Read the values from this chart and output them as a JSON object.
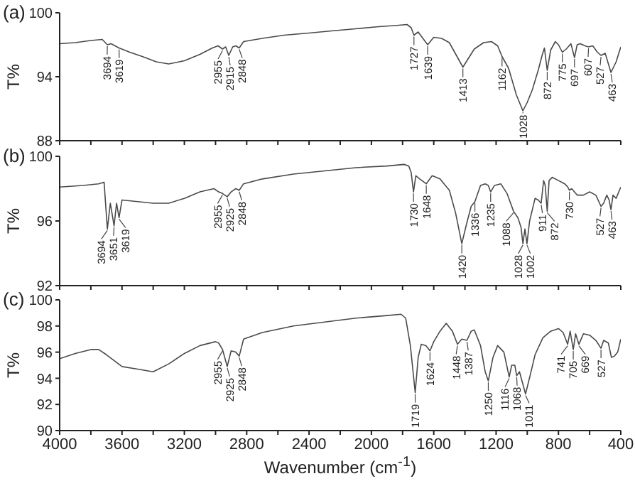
{
  "chart_data": [
    {
      "type": "line",
      "title": "(a)",
      "ylabel": "T%",
      "xlim": [
        4000,
        400
      ],
      "xticks": [
        4000,
        3800,
        3600,
        3400,
        3200,
        3000,
        2800,
        2600,
        2400,
        2200,
        2000,
        1800,
        1600,
        1400,
        1200,
        1000,
        800,
        600,
        400
      ],
      "ylim": [
        88,
        100
      ],
      "yticks": [
        88,
        94,
        100
      ],
      "tick_labels": "y",
      "x": [
        4000,
        3900,
        3800,
        3727,
        3694,
        3670,
        3619,
        3550,
        3470,
        3380,
        3300,
        3200,
        3100,
        3020,
        2984,
        2955,
        2935,
        2915,
        2890,
        2870,
        2848,
        2820,
        2700,
        2560,
        2400,
        2256,
        2100,
        1953,
        1850,
        1771,
        1745,
        1727,
        1700,
        1639,
        1600,
        1550,
        1500,
        1413,
        1340,
        1280,
        1230,
        1190,
        1162,
        1120,
        1070,
        1028,
        1000,
        967,
        930,
        905,
        890,
        872,
        850,
        820,
        800,
        775,
        750,
        720,
        697,
        680,
        660,
        630,
        607,
        580,
        550,
        527,
        500,
        463,
        430,
        400
      ],
      "series": [
        {
          "color": "#4a4a4a",
          "values": [
            97.1,
            97.2,
            97.4,
            97.5,
            97.0,
            97.1,
            96.7,
            96.3,
            95.9,
            95.4,
            95.2,
            95.5,
            96.1,
            96.7,
            96.9,
            96.6,
            96.8,
            96.0,
            96.8,
            96.9,
            96.7,
            97.3,
            97.6,
            97.9,
            98.1,
            98.3,
            98.5,
            98.7,
            98.8,
            98.9,
            98.6,
            97.9,
            98.2,
            97.0,
            97.7,
            97.6,
            97.2,
            94.9,
            96.6,
            97.2,
            97.3,
            96.9,
            95.9,
            94.8,
            92.3,
            90.8,
            91.6,
            92.8,
            94.6,
            96.0,
            96.7,
            94.6,
            96.5,
            97.3,
            97.0,
            96.3,
            96.6,
            97.1,
            95.8,
            97.0,
            97.1,
            96.9,
            96.8,
            96.9,
            96.3,
            96.0,
            96.2,
            94.4,
            95.4,
            96.8
          ]
        }
      ],
      "annotations": [
        {
          "text": "3694",
          "x": 3694,
          "y": 97.0
        },
        {
          "text": "3619",
          "x": 3619,
          "y": 96.7
        },
        {
          "text": "2955",
          "x": 2955,
          "y": 96.6
        },
        {
          "text": "2915",
          "x": 2915,
          "y": 96.0
        },
        {
          "text": "2848",
          "x": 2848,
          "y": 96.7
        },
        {
          "text": "1727",
          "x": 1727,
          "y": 97.9
        },
        {
          "text": "1639",
          "x": 1639,
          "y": 97.0
        },
        {
          "text": "1413",
          "x": 1413,
          "y": 94.9
        },
        {
          "text": "1162",
          "x": 1162,
          "y": 95.9
        },
        {
          "text": "1028",
          "x": 1028,
          "y": 90.8
        },
        {
          "text": "872",
          "x": 872,
          "y": 94.6
        },
        {
          "text": "775",
          "x": 775,
          "y": 96.3
        },
        {
          "text": "697",
          "x": 697,
          "y": 95.8
        },
        {
          "text": "607",
          "x": 607,
          "y": 96.8
        },
        {
          "text": "527",
          "x": 527,
          "y": 96.0
        },
        {
          "text": "463",
          "x": 463,
          "y": 94.4
        }
      ]
    },
    {
      "type": "line",
      "title": "(b)",
      "ylabel": "T%",
      "xlim": [
        4000,
        400
      ],
      "xticks": [
        4000,
        3800,
        3600,
        3400,
        3200,
        3000,
        2800,
        2600,
        2400,
        2200,
        2000,
        1800,
        1600,
        1400,
        1200,
        1000,
        800,
        600,
        400
      ],
      "ylim": [
        92,
        100
      ],
      "yticks": [
        92,
        96,
        100
      ],
      "tick_labels": "y",
      "x": [
        4000,
        3850,
        3750,
        3715,
        3694,
        3675,
        3651,
        3635,
        3619,
        3600,
        3500,
        3400,
        3300,
        3200,
        3100,
        3010,
        2980,
        2955,
        2925,
        2900,
        2870,
        2848,
        2820,
        2700,
        2500,
        2300,
        2100,
        1900,
        1790,
        1760,
        1745,
        1730,
        1715,
        1690,
        1648,
        1610,
        1560,
        1500,
        1460,
        1420,
        1390,
        1360,
        1336,
        1300,
        1270,
        1250,
        1235,
        1210,
        1170,
        1130,
        1088,
        1060,
        1040,
        1028,
        1015,
        1002,
        985,
        950,
        930,
        911,
        895,
        885,
        872,
        860,
        840,
        800,
        760,
        740,
        730,
        715,
        680,
        640,
        600,
        560,
        527,
        510,
        490,
        475,
        463,
        450,
        430,
        400
      ],
      "series": [
        {
          "color": "#4a4a4a",
          "values": [
            98.1,
            98.2,
            98.3,
            98.4,
            95.5,
            97.1,
            95.7,
            97.1,
            96.2,
            97.3,
            97.2,
            97.1,
            97.1,
            97.4,
            97.8,
            98.0,
            97.8,
            97.7,
            97.5,
            97.8,
            98.0,
            97.9,
            98.3,
            98.6,
            98.9,
            99.1,
            99.3,
            99.4,
            99.5,
            99.4,
            99.0,
            97.8,
            98.8,
            98.6,
            98.3,
            98.8,
            98.6,
            97.9,
            96.5,
            94.6,
            95.8,
            96.9,
            97.2,
            98.2,
            98.3,
            98.2,
            97.8,
            98.2,
            98.3,
            97.7,
            96.6,
            96.2,
            95.6,
            94.6,
            95.5,
            94.6,
            96.0,
            97.4,
            97.3,
            97.1,
            98.5,
            98.2,
            96.6,
            98.5,
            98.7,
            98.5,
            98.3,
            98.1,
            97.9,
            98.0,
            97.6,
            97.6,
            97.8,
            97.6,
            96.9,
            97.1,
            97.6,
            97.3,
            96.7,
            97.6,
            97.4,
            98.1
          ]
        }
      ],
      "annotations": [
        {
          "text": "3694",
          "x": 3694,
          "y": 95.5
        },
        {
          "text": "3651",
          "x": 3651,
          "y": 95.7
        },
        {
          "text": "3619",
          "x": 3619,
          "y": 96.2
        },
        {
          "text": "2955",
          "x": 2955,
          "y": 97.7
        },
        {
          "text": "2925",
          "x": 2925,
          "y": 97.5
        },
        {
          "text": "2848",
          "x": 2848,
          "y": 97.9
        },
        {
          "text": "1730",
          "x": 1730,
          "y": 97.8
        },
        {
          "text": "1648",
          "x": 1648,
          "y": 98.3
        },
        {
          "text": "1420",
          "x": 1420,
          "y": 94.6
        },
        {
          "text": "1336",
          "x": 1336,
          "y": 97.2
        },
        {
          "text": "1235",
          "x": 1235,
          "y": 97.8
        },
        {
          "text": "1088",
          "x": 1088,
          "y": 96.6
        },
        {
          "text": "1028",
          "x": 1028,
          "y": 94.6
        },
        {
          "text": "1002",
          "x": 1002,
          "y": 94.6
        },
        {
          "text": "911",
          "x": 911,
          "y": 97.1
        },
        {
          "text": "872",
          "x": 872,
          "y": 96.6
        },
        {
          "text": "730",
          "x": 730,
          "y": 97.9
        },
        {
          "text": "527",
          "x": 527,
          "y": 96.9
        },
        {
          "text": "463",
          "x": 463,
          "y": 96.7
        }
      ]
    },
    {
      "type": "line",
      "title": "(c)",
      "ylabel": "T%",
      "xlabel": "Wavenumber (cm$^{-1}$)",
      "xlim": [
        4000,
        400
      ],
      "xticks": [
        4000,
        {
          "value": 3800,
          "label": null
        },
        3600,
        {
          "value": 3400,
          "label": null
        },
        3200,
        {
          "value": 3000,
          "label": null
        },
        2800,
        {
          "value": 2600,
          "label": null
        },
        2400,
        {
          "value": 2200,
          "label": null
        },
        2000,
        {
          "value": 1800,
          "label": null
        },
        1600,
        {
          "value": 1400,
          "label": null
        },
        1200,
        {
          "value": 1000,
          "label": null
        },
        800,
        {
          "value": 600,
          "label": null
        },
        400
      ],
      "ylim": [
        90,
        100
      ],
      "yticks": [
        90,
        92,
        94,
        96,
        98,
        100
      ],
      "x": [
        4000,
        3900,
        3800,
        3750,
        3700,
        3600,
        3500,
        3400,
        3300,
        3200,
        3100,
        3000,
        2980,
        2955,
        2925,
        2900,
        2870,
        2848,
        2820,
        2700,
        2500,
        2300,
        2100,
        1900,
        1810,
        1780,
        1750,
        1719,
        1700,
        1680,
        1650,
        1624,
        1600,
        1560,
        1520,
        1480,
        1448,
        1420,
        1387,
        1360,
        1340,
        1300,
        1270,
        1250,
        1220,
        1190,
        1150,
        1116,
        1100,
        1080,
        1068,
        1050,
        1011,
        980,
        950,
        900,
        850,
        800,
        770,
        741,
        725,
        705,
        690,
        669,
        640,
        600,
        560,
        527,
        510,
        480,
        460,
        440,
        420,
        400
      ],
      "series": [
        {
          "color": "#4a4a4a",
          "values": [
            95.5,
            95.9,
            96.2,
            96.2,
            95.8,
            94.9,
            94.7,
            94.5,
            95.1,
            95.9,
            96.5,
            96.8,
            96.7,
            96.2,
            94.9,
            96.1,
            96.0,
            95.7,
            97.0,
            97.5,
            98.0,
            98.3,
            98.6,
            98.8,
            98.9,
            98.6,
            96.5,
            92.9,
            95.6,
            96.6,
            96.5,
            96.1,
            96.8,
            97.6,
            98.2,
            97.6,
            96.6,
            97.0,
            96.9,
            97.6,
            97.7,
            96.5,
            94.5,
            93.8,
            95.6,
            96.5,
            96.0,
            94.1,
            95.0,
            95.0,
            94.2,
            94.5,
            92.8,
            94.3,
            95.8,
            97.1,
            97.6,
            97.8,
            97.5,
            96.6,
            97.6,
            96.2,
            97.4,
            96.6,
            97.4,
            97.3,
            96.9,
            96.3,
            96.9,
            96.7,
            95.6,
            95.7,
            96.0,
            97.0
          ]
        }
      ],
      "annotations": [
        {
          "text": "2955",
          "x": 2955,
          "y": 96.2
        },
        {
          "text": "2925",
          "x": 2925,
          "y": 94.9
        },
        {
          "text": "2848",
          "x": 2848,
          "y": 95.7
        },
        {
          "text": "1719",
          "x": 1719,
          "y": 92.9
        },
        {
          "text": "1624",
          "x": 1624,
          "y": 96.1
        },
        {
          "text": "1448",
          "x": 1448,
          "y": 96.6
        },
        {
          "text": "1387",
          "x": 1387,
          "y": 96.9
        },
        {
          "text": "1250",
          "x": 1250,
          "y": 93.8
        },
        {
          "text": "1116",
          "x": 1116,
          "y": 94.1
        },
        {
          "text": "1068",
          "x": 1068,
          "y": 94.2
        },
        {
          "text": "1011",
          "x": 1011,
          "y": 92.8
        },
        {
          "text": "741",
          "x": 741,
          "y": 96.6
        },
        {
          "text": "705",
          "x": 705,
          "y": 96.2
        },
        {
          "text": "669",
          "x": 669,
          "y": 96.6
        },
        {
          "text": "527",
          "x": 527,
          "y": 96.3
        }
      ]
    }
  ]
}
